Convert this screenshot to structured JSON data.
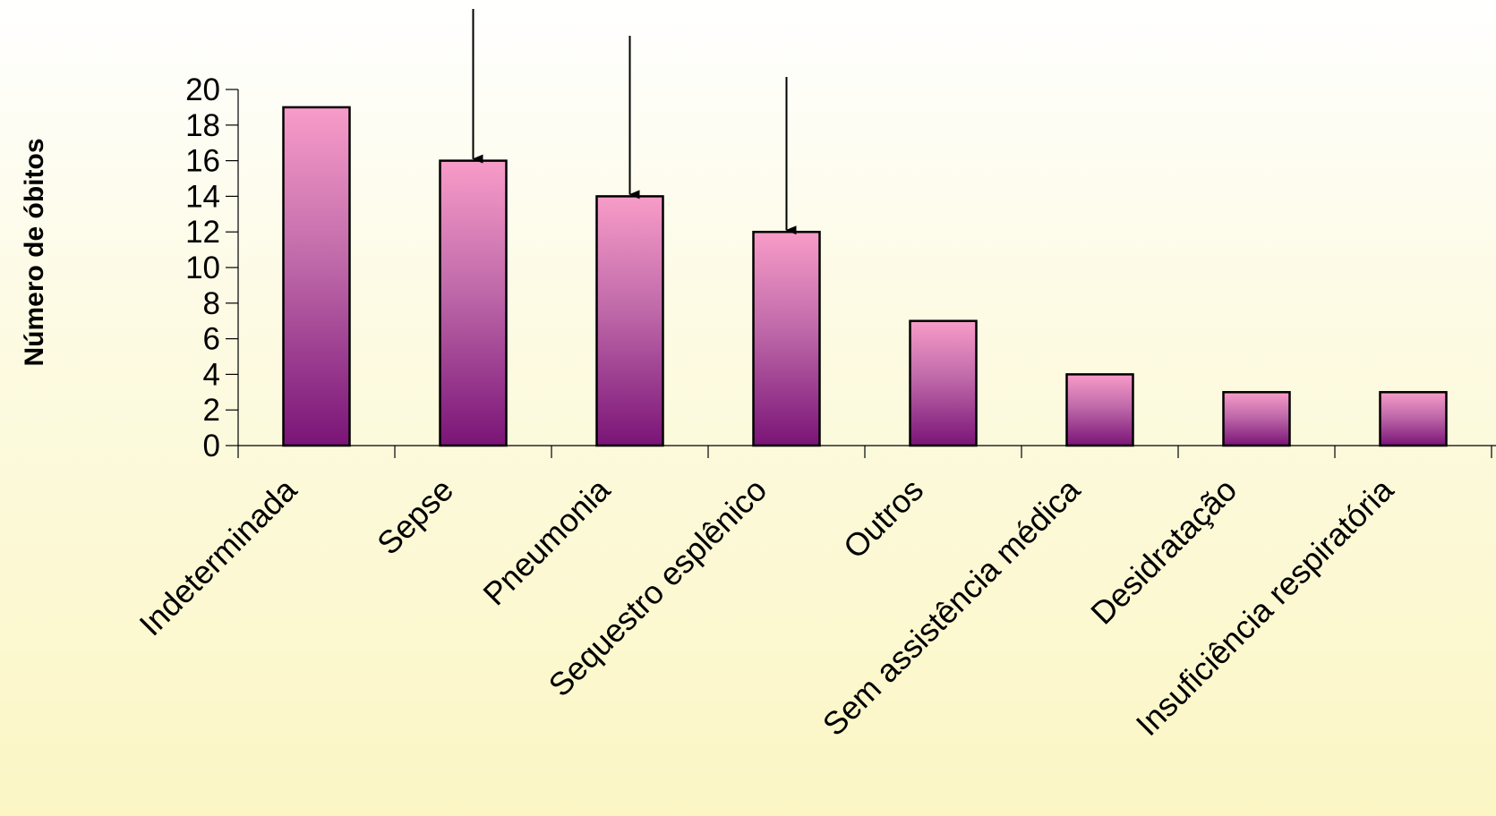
{
  "chart_data": {
    "type": "bar",
    "title": "",
    "xlabel": "",
    "ylabel": "Número de óbitos",
    "ylim": [
      0,
      20
    ],
    "yticks": [
      0,
      2,
      4,
      6,
      8,
      10,
      12,
      14,
      16,
      18,
      20
    ],
    "grid": false,
    "legend": "none",
    "categories": [
      "Indeterminada",
      "Sepse",
      "Pneumonia",
      "Sequestro esplênico",
      "Outros",
      "Sem assistência médica",
      "Desidratação",
      "Insuficiência respiratória"
    ],
    "values": [
      19,
      16,
      14,
      12,
      7,
      4,
      3,
      3
    ],
    "arrow_annotations": [
      "Sepse",
      "Pneumonia",
      "Sequestro esplênico"
    ],
    "colors": {
      "bar_top": "#f89cc8",
      "bar_mid": "#c06aaa",
      "bar_bottom": "#7a1477",
      "bar_stroke": "#000000",
      "background_top": "#ffffff",
      "background_bottom": "#fbf6c4"
    }
  }
}
